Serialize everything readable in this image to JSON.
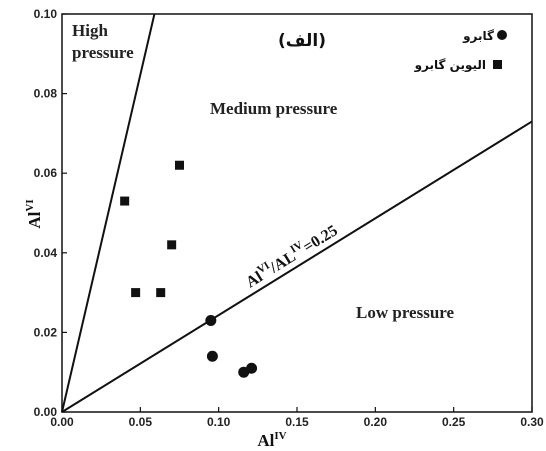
{
  "chart_data": {
    "type": "scatter",
    "panel_label": "(الف)",
    "xlabel": "Al",
    "xlabel_sup": "IV",
    "ylabel": "Al",
    "ylabel_sup": "VI",
    "xlim": [
      0.0,
      0.3
    ],
    "ylim": [
      0.0,
      0.1
    ],
    "x_ticks": [
      "0.00",
      "0.05",
      "0.10",
      "0.15",
      "0.20",
      "0.25",
      "0.30"
    ],
    "y_ticks": [
      "0.00",
      "0.02",
      "0.04",
      "0.06",
      "0.08",
      "0.10"
    ],
    "grid": false,
    "legend_position": "top-right",
    "series": [
      {
        "name": "گابرو",
        "marker": "circle",
        "points": [
          [
            0.095,
            0.023
          ],
          [
            0.096,
            0.014
          ],
          [
            0.116,
            0.01
          ],
          [
            0.121,
            0.011
          ]
        ]
      },
      {
        "name": "الیوین گابرو",
        "marker": "square",
        "points": [
          [
            0.04,
            0.053
          ],
          [
            0.047,
            0.03
          ],
          [
            0.063,
            0.03
          ],
          [
            0.07,
            0.042
          ],
          [
            0.075,
            0.062
          ]
        ]
      }
    ],
    "boundary_lines": [
      {
        "from": [
          0.0,
          0.0
        ],
        "to": [
          0.3,
          0.073
        ],
        "label_a": "Al",
        "label_a_sup": "VI",
        "label_b": "/AL",
        "label_b_sup": "IV",
        "label_c": "=0.25"
      },
      {
        "from": [
          0.0,
          0.0
        ],
        "to": [
          0.059,
          0.1
        ]
      }
    ],
    "regions": {
      "high_line1": "High",
      "high_line2": "pressure",
      "medium": "Medium pressure",
      "low": "Low pressure"
    }
  }
}
